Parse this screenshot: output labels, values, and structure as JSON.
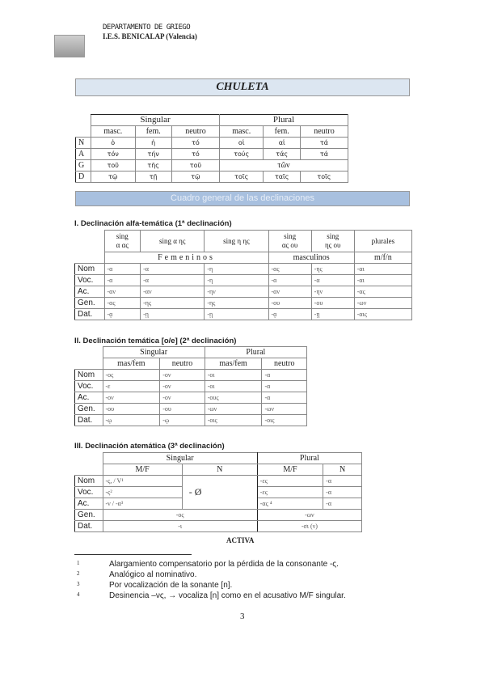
{
  "header": {
    "department": "DEPARTAMENTO DE GRIEGO",
    "school": "I.E.S. BENICALAP (Valencia)"
  },
  "title": "CHULETA",
  "articles": {
    "groups": [
      "Singular",
      "Plural"
    ],
    "cols": [
      "masc.",
      "fem.",
      "neutro",
      "masc.",
      "fem.",
      "neutro"
    ],
    "rows": [
      [
        "N",
        "ὁ",
        "ἡ",
        "τό",
        "οἱ",
        "αἱ",
        "τά"
      ],
      [
        "A",
        "τόν",
        "τήν",
        "τό",
        "τούς",
        "τάς",
        "τά"
      ],
      [
        "G",
        "τοῦ",
        "τῆς",
        "τοῦ",
        "τῶν"
      ],
      [
        "D",
        "τῷ",
        "τῇ",
        "τῷ",
        "τοῖς",
        "ταῖς",
        "τοῖς"
      ]
    ]
  },
  "section_bar": "Cuadro general de las declinaciones",
  "decl1": {
    "title": "I. Declinación alfa-temática (1ª declinación)",
    "cols": [
      "sing\nα ας",
      "sing α ης",
      "sing η ης",
      "sing\nας ου",
      "sing\nης ου",
      "plurales"
    ],
    "groups": [
      "Femeninos",
      "masculinos",
      "m/f/n"
    ],
    "rows": [
      [
        "Nom",
        "-α",
        "-α",
        "-η",
        "-ας",
        "-ης",
        "-αι"
      ],
      [
        "Voc.",
        "-α",
        "-α",
        "-η",
        "-α",
        "-α",
        "-αι"
      ],
      [
        "Ac.",
        "-αν",
        "-αν",
        "-ην",
        "-αν",
        "-ην",
        "-ας"
      ],
      [
        "Gen.",
        "-ας",
        "-ης",
        "-ης",
        "-ου",
        "-ου",
        "-ων"
      ],
      [
        "Dat.",
        "-ᾳ",
        "-ῃ",
        "-ῃ",
        "-ᾳ",
        "-ῃ",
        "-αις"
      ]
    ]
  },
  "decl2": {
    "title": "II. Declinación temática [o/e] (2ª declinación)",
    "groups": [
      "Singular",
      "Plural"
    ],
    "cols": [
      "mas/fem",
      "neutro",
      "mas/fem",
      "neutro"
    ],
    "rows": [
      [
        "Nom",
        "-ος",
        "-ον",
        "-οι",
        "-α"
      ],
      [
        "Voc.",
        "-ε",
        "-ον",
        "-οι",
        "-α"
      ],
      [
        "Ac.",
        "-ον",
        "-ον",
        "-ους",
        "-α"
      ],
      [
        "Gen.",
        "-ου",
        "-ου",
        "-ων",
        "-ων"
      ],
      [
        "Dat.",
        "-ῳ",
        "-ῳ",
        "-οις",
        "-οις"
      ]
    ]
  },
  "decl3": {
    "title": "III. Declinación atemática (3ª declinación)",
    "groups": [
      "Singular",
      "Plural"
    ],
    "cols": [
      "M/F",
      "N",
      "M/F",
      "N"
    ],
    "labels": [
      "Nom",
      "Voc.",
      "Ac.",
      "Gen.",
      "Dat."
    ],
    "sg_mf": [
      "-ς, / V¹",
      "-ς²",
      "-ν / -α³"
    ],
    "sg_n": "- Ø",
    "pl_mf": [
      "-ες",
      "-ες",
      "-ας ⁴"
    ],
    "pl_n": [
      "-α",
      "-α",
      "-α"
    ],
    "gen": [
      "-ος",
      "-ων"
    ],
    "dat": [
      "-ι",
      "-σι (ν)"
    ]
  },
  "activa": "ACTIVA",
  "footnotes": [
    {
      "n": "1",
      "text": "Alargamiento compensatorio por la pérdida de la consonante -ς."
    },
    {
      "n": "2",
      "text": "Analógico al nominativo."
    },
    {
      "n": "3",
      "text": "Por vocalización de la sonante [n]."
    },
    {
      "n": "4",
      "text": "Desinencia –νς, → vocaliza [n] como en el acusativo M/F singular."
    }
  ],
  "page_number": "3"
}
